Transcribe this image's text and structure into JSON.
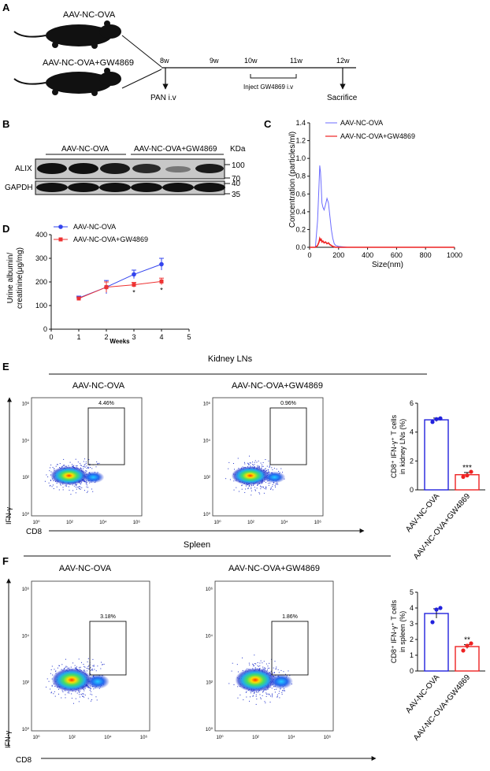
{
  "panels": {
    "A": {
      "label": "A",
      "groups": [
        "AAV-NC-OVA",
        "AAV-NC-OVA+GW4869"
      ],
      "timeline_ticks": [
        "8w",
        "9w",
        "10w",
        "11w",
        "12w"
      ],
      "events": {
        "pan": "PAN i.v",
        "inject": "Inject GW4869 i.v",
        "sacrifice": "Sacrifice"
      }
    },
    "B": {
      "label": "B",
      "groups": [
        "AAV-NC-OVA",
        "AAV-NC-OVA+GW4869"
      ],
      "kda_label": "KDa",
      "rows": [
        "ALIX",
        "GAPDH"
      ],
      "markers": [
        "100",
        "70",
        "40",
        "35"
      ]
    },
    "C": {
      "label": "C",
      "chart_data": {
        "type": "line",
        "xlabel": "Size(nm)",
        "ylabel": "Concentration (particles/ml)",
        "xlim": [
          0,
          1000
        ],
        "ylim": [
          0,
          1.4
        ],
        "x_ticks": [
          "0",
          "200",
          "400",
          "600",
          "800",
          "1000"
        ],
        "y_ticks": [
          "0.0",
          "0.2",
          "0.4",
          "0.6",
          "0.8",
          "1.0",
          "1.2",
          "1.4"
        ],
        "legend": "top-right",
        "series": [
          {
            "name": "AAV-NC-OVA",
            "color": "#6b6bff",
            "x": [
              0,
              40,
              55,
              65,
              70,
              75,
              80,
              85,
              92,
              100,
              110,
              120,
              130,
              140,
              150,
              160,
              170,
              180,
              200,
              260,
              400,
              600,
              800,
              1000
            ],
            "y": [
              0,
              0,
              0.3,
              0.7,
              0.92,
              0.85,
              0.7,
              0.5,
              0.45,
              0.42,
              0.48,
              0.55,
              0.5,
              0.35,
              0.2,
              0.1,
              0.04,
              0.02,
              0.01,
              0,
              0,
              0,
              0,
              0
            ]
          },
          {
            "name": "AAV-NC-OVA+GW4869",
            "color": "#ee2222",
            "x": [
              0,
              40,
              55,
              65,
              70,
              75,
              80,
              85,
              92,
              100,
              110,
              120,
              130,
              140,
              150,
              160,
              170,
              180,
              200,
              260,
              400,
              600,
              800,
              1000
            ],
            "y": [
              0,
              0,
              0.02,
              0.06,
              0.1,
              0.08,
              0.09,
              0.06,
              0.07,
              0.05,
              0.06,
              0.04,
              0.05,
              0.03,
              0.02,
              0.01,
              0.005,
              0,
              0,
              0,
              0,
              0,
              0,
              0
            ]
          }
        ]
      }
    },
    "D": {
      "label": "D",
      "chart_data": {
        "type": "line",
        "xlabel": "Weeks",
        "ylabel": "Urine albumin/ creatinine(μg/mg)",
        "xlim": [
          0,
          5
        ],
        "ylim": [
          0,
          400
        ],
        "x_ticks": [
          "0",
          "1",
          "2",
          "3",
          "4",
          "5"
        ],
        "y_ticks": [
          "0",
          "100",
          "200",
          "300",
          "400"
        ],
        "legend": "top-left",
        "series": [
          {
            "name": "AAV-NC-OVA",
            "color": "#3344ee",
            "marker": "circle",
            "x": [
              1,
              2,
              3,
              4
            ],
            "y": [
              132,
              178,
              232,
              275
            ],
            "err": [
              8,
              28,
              18,
              25
            ]
          },
          {
            "name": "AAV-NC-OVA+GW4869",
            "color": "#ee3333",
            "marker": "square",
            "x": [
              1,
              2,
              3,
              4
            ],
            "y": [
              130,
              178,
              188,
              202
            ],
            "err": [
              6,
              22,
              10,
              14
            ]
          }
        ],
        "annotations": [
          {
            "x": 3,
            "text": "*"
          },
          {
            "x": 4,
            "text": "*"
          }
        ]
      }
    },
    "E": {
      "label": "E",
      "section_title": "Kidney LNs",
      "groups": [
        "AAV-NC-OVA",
        "AAV-NC-OVA+GW4869"
      ],
      "gate_pcts": [
        "4.46%",
        "0.96%"
      ],
      "axis_y": "IFN-γ",
      "axis_x": "CD8",
      "ticks": [
        "10⁰",
        "10²",
        "10⁴",
        "10⁶"
      ],
      "chart_data": {
        "type": "bar",
        "categories": [
          "AAV-NC-OVA",
          "AAV-NC-OVA+GW4869"
        ],
        "values": [
          4.85,
          1.05
        ],
        "points": [
          [
            4.7,
            4.9,
            4.95
          ],
          [
            0.9,
            1.0,
            1.25
          ]
        ],
        "errors": [
          0.12,
          0.15
        ],
        "ylabel": "CD8⁺ IFN-γ⁺ T cells in kidney LNs (%)",
        "ylim": [
          0,
          6
        ],
        "y_ticks": [
          "0",
          "2",
          "4",
          "6"
        ],
        "significance": "***",
        "colors": [
          "#2222dd",
          "#ee2222"
        ]
      }
    },
    "F": {
      "label": "F",
      "section_title": "Spleen",
      "groups": [
        "AAV-NC-OVA",
        "AAV-NC-OVA+GW4869"
      ],
      "gate_pcts": [
        "3.18%",
        "1.86%"
      ],
      "axis_y": "IFN-γ",
      "axis_x": "CD8",
      "ticks": [
        "10⁰",
        "10²",
        "10⁴",
        "10⁶"
      ],
      "chart_data": {
        "type": "bar",
        "categories": [
          "AAV-NC-OVA",
          "AAV-NC-OVA+GW4869"
        ],
        "values": [
          3.65,
          1.55
        ],
        "points": [
          [
            3.1,
            3.9,
            4.0
          ],
          [
            1.3,
            1.6,
            1.75
          ]
        ],
        "errors": [
          0.3,
          0.12
        ],
        "ylabel": "CD8⁺ IFN-γ⁺ T cells in spleen (%)",
        "ylim": [
          0,
          5
        ],
        "y_ticks": [
          "0",
          "1",
          "2",
          "3",
          "4",
          "5"
        ],
        "significance": "**",
        "colors": [
          "#2222dd",
          "#ee2222"
        ]
      }
    }
  }
}
